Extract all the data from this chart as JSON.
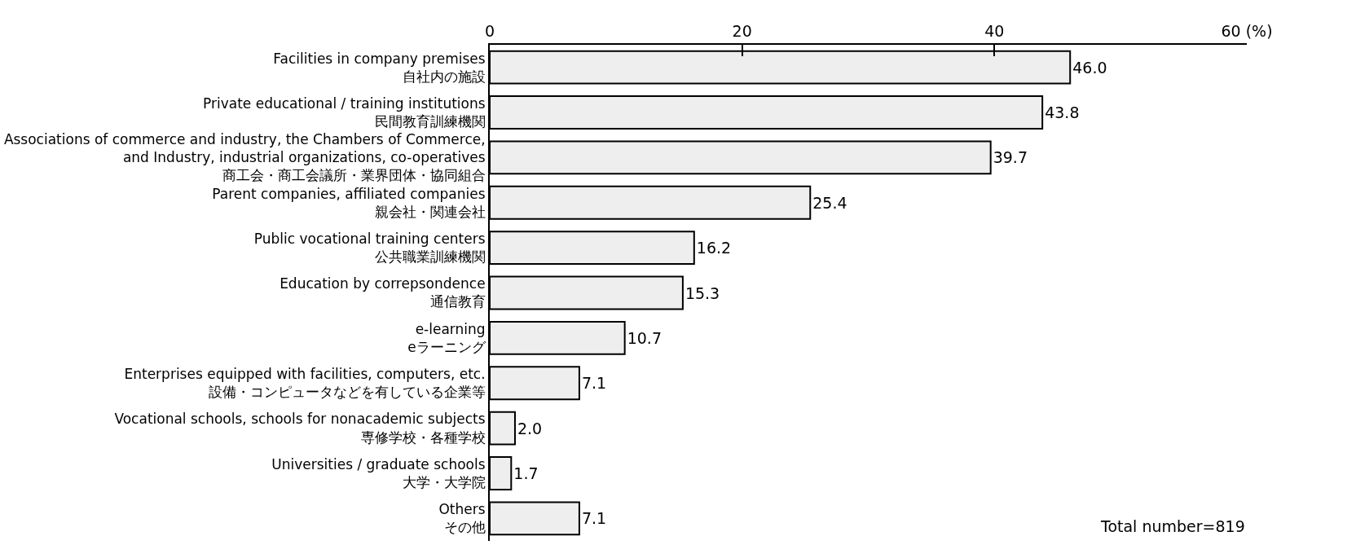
{
  "chart_data": {
    "type": "bar",
    "orientation": "horizontal",
    "categories": [
      "Facilities in company premises\n自社内の施設",
      "Private educational / training institutions\n民間教育訓練機関",
      "Associations of commerce and industry, the Chambers of Commerce,\nand Industry, industrial organizations, co-operatives\n商工会・商工会議所・業界団体・協同組合",
      "Parent companies, affiliated companies\n親会社・関連会社",
      "Public vocational training centers\n公共職業訓練機関",
      "Education by correpsondence\n通信教育",
      "e-learning\neラーニング",
      "Enterprises equipped with facilities, computers, etc.\n設備・コンピュータなどを有している企業等",
      "Vocational schools, schools for nonacademic subjects\n専修学校・各種学校",
      "Universities / graduate schools\n大学・大学院",
      "Others\nその他"
    ],
    "values": [
      46.0,
      43.8,
      39.7,
      25.4,
      16.2,
      15.3,
      10.7,
      7.1,
      2.0,
      1.7,
      7.1
    ],
    "value_labels": [
      "46.0",
      "43.8",
      "39.7",
      "25.4",
      "16.2",
      "15.3",
      "10.7",
      "7.1",
      "2.0",
      "1.7",
      "7.1"
    ],
    "color": "#eeeeee",
    "xlim": [
      0,
      60
    ],
    "xticks": [
      0,
      20,
      40,
      {
        "value": 60,
        "label": "60 (%)"
      }
    ],
    "annotations": [
      "Total number=819"
    ]
  }
}
